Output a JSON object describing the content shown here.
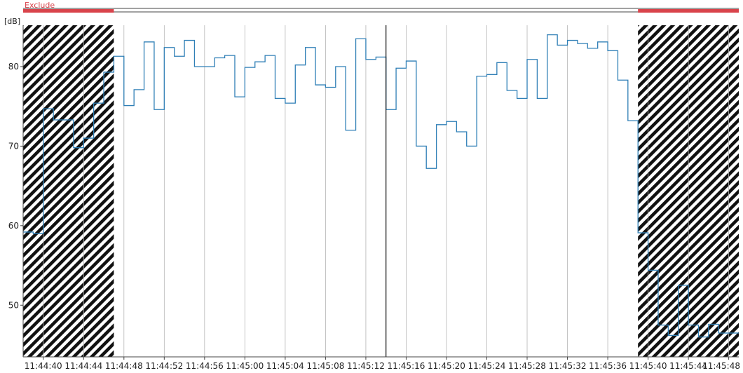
{
  "exclude_bar": {
    "label": "Exclude",
    "color": "#d9434b"
  },
  "chart_data": {
    "type": "line",
    "step": true,
    "ylabel": "[dB]",
    "ylim": [
      43.5,
      85.2
    ],
    "yticks": [
      50,
      60,
      70,
      80
    ],
    "xlim": [
      "11:44:38",
      "11:45:49"
    ],
    "xticks": [
      "11:44:40",
      "11:44:44",
      "11:44:48",
      "11:44:52",
      "11:44:56",
      "11:45:00",
      "11:45:04",
      "11:45:08",
      "11:45:12",
      "11:45:16",
      "11:45:20",
      "11:45:24",
      "11:45:28",
      "11:45:32",
      "11:45:36",
      "11:45:40",
      "11:45:44",
      "11:45:48"
    ],
    "grid_x": true,
    "grid_y": false,
    "cursor_time": "11:45:14",
    "excluded_ranges": [
      [
        "11:44:38",
        "11:44:47"
      ],
      [
        "11:45:39",
        "11:45:49"
      ]
    ],
    "line_color": "#2f7fb6",
    "series": [
      {
        "name": "",
        "x": [
          "11:44:38",
          "11:44:39",
          "11:44:40",
          "11:44:41",
          "11:44:42",
          "11:44:43",
          "11:44:44",
          "11:44:45",
          "11:44:46",
          "11:44:47",
          "11:44:48",
          "11:44:49",
          "11:44:50",
          "11:44:51",
          "11:44:52",
          "11:44:53",
          "11:44:54",
          "11:44:55",
          "11:44:56",
          "11:44:57",
          "11:44:58",
          "11:44:59",
          "11:45:00",
          "11:45:01",
          "11:45:02",
          "11:45:03",
          "11:45:04",
          "11:45:05",
          "11:45:06",
          "11:45:07",
          "11:45:08",
          "11:45:09",
          "11:45:10",
          "11:45:11",
          "11:45:12",
          "11:45:13",
          "11:45:14",
          "11:45:15",
          "11:45:16",
          "11:45:17",
          "11:45:18",
          "11:45:19",
          "11:45:20",
          "11:45:21",
          "11:45:22",
          "11:45:23",
          "11:45:24",
          "11:45:25",
          "11:45:26",
          "11:45:27",
          "11:45:28",
          "11:45:29",
          "11:45:30",
          "11:45:31",
          "11:45:32",
          "11:45:33",
          "11:45:34",
          "11:45:35",
          "11:45:36",
          "11:45:37",
          "11:45:38",
          "11:45:39",
          "11:45:40",
          "11:45:41",
          "11:45:42",
          "11:45:43",
          "11:45:44",
          "11:45:45",
          "11:45:46",
          "11:45:47",
          "11:45:48"
        ],
        "y": [
          59.2,
          59.0,
          74.7,
          73.3,
          73.3,
          69.8,
          71.0,
          75.4,
          79.3,
          81.3,
          75.1,
          77.1,
          83.1,
          74.6,
          82.4,
          81.3,
          83.3,
          80.0,
          80.0,
          81.1,
          81.4,
          76.2,
          79.9,
          80.6,
          81.4,
          76.0,
          75.4,
          80.2,
          82.4,
          77.7,
          77.4,
          80.0,
          72.0,
          83.5,
          80.9,
          81.2,
          74.6,
          79.8,
          80.7,
          70.0,
          67.2,
          72.7,
          73.1,
          71.8,
          70.0,
          78.8,
          79.0,
          80.5,
          77.0,
          76.0,
          80.9,
          76.0,
          84.0,
          82.7,
          83.3,
          82.9,
          82.3,
          83.1,
          82.0,
          78.3,
          73.2,
          59.1,
          54.4,
          47.5,
          46.2,
          52.5,
          47.5,
          46.0,
          47.6,
          46.5,
          46.5
        ]
      }
    ]
  }
}
